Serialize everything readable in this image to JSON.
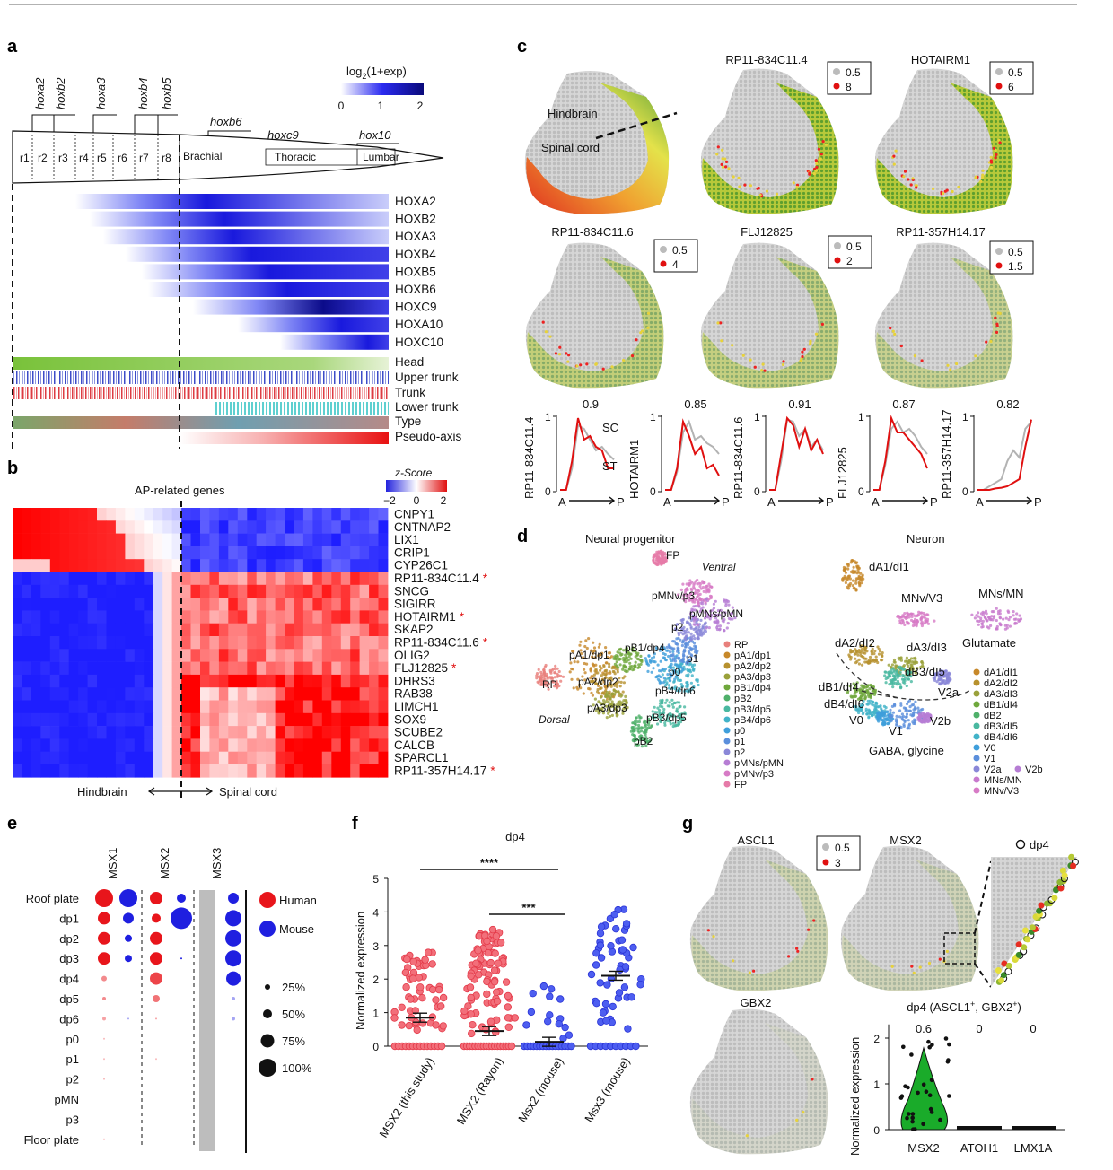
{
  "panels": {
    "a": "a",
    "b": "b",
    "c": "c",
    "d": "d",
    "e": "e",
    "f": "f",
    "g": "g"
  },
  "panel_a": {
    "hox_labels": [
      "hoxa2",
      "hoxb2",
      "hoxa3",
      "hoxb4",
      "hoxb5",
      "hoxb6",
      "hoxc9",
      "hox10"
    ],
    "rhombomeres": [
      "r1",
      "r2",
      "r3",
      "r4",
      "r5",
      "r6",
      "r7",
      "r8"
    ],
    "regions": [
      "Brachial",
      "Thoracic",
      "Lumbar"
    ],
    "legend_title": "log",
    "legend_sub": "2",
    "legend_rest": "(1+exp)",
    "legend_ticks": [
      "0",
      "1",
      "2"
    ],
    "genes": [
      "HOXA2",
      "HOXB2",
      "HOXA3",
      "HOXB4",
      "HOXB5",
      "HOXB6",
      "HOXC9",
      "HOXA10",
      "HOXC10"
    ],
    "tracks": [
      "Head",
      "Upper trunk",
      "Trunk",
      "Lower trunk",
      "Type",
      "Pseudo-axis"
    ]
  },
  "panel_b": {
    "title": "AP-related genes",
    "legend_title": "z-Score",
    "legend_ticks": [
      "−2",
      "0",
      "2"
    ],
    "genes": [
      "CNPY1",
      "CNTNAP2",
      "LIX1",
      "CRIP1",
      "CYP26C1",
      "RP11-834C11.4",
      "SNCG",
      "SIGIRR",
      "HOTAIRM1",
      "SKAP2",
      "RP11-834C11.6",
      "OLIG2",
      "FLJ12825",
      "DHRS3",
      "RAB38",
      "LIMCH1",
      "SOX9",
      "SCUBE2",
      "CALCB",
      "SPARCL1",
      "RP11-357H14.17"
    ],
    "starred": [
      5,
      8,
      10,
      12,
      20
    ],
    "star": "*",
    "axis_left": "Hindbrain",
    "axis_right": "Spinal cord"
  },
  "panel_c": {
    "region_hindbrain": "Hindbrain",
    "region_spinal": "Spinal cord",
    "maps": [
      {
        "gene": "RP11-834C11.4",
        "lo": "0.5",
        "hi": "8"
      },
      {
        "gene": "HOTAIRM1",
        "lo": "0.5",
        "hi": "6"
      },
      {
        "gene": "RP11-834C11.6",
        "lo": "0.5",
        "hi": "4"
      },
      {
        "gene": "FLJ12825",
        "lo": "0.5",
        "hi": "2"
      },
      {
        "gene": "RP11-357H14.17",
        "lo": "0.5",
        "hi": "1.5"
      }
    ],
    "curves": [
      {
        "gene": "RP11-834C11.4",
        "r": "0.9"
      },
      {
        "gene": "HOTAIRM1",
        "r": "0.85"
      },
      {
        "gene": "RP11-834C11.6",
        "r": "0.91"
      },
      {
        "gene": "FLJ12825",
        "r": "0.87"
      },
      {
        "gene": "RP11-357H14.17",
        "r": "0.82"
      }
    ],
    "y_top": "1",
    "y_bottom": "0",
    "x_a": "A",
    "x_p": "P",
    "sc_label": "SC",
    "st_label": "ST"
  },
  "panel_d": {
    "title_left": "Neural progenitor",
    "title_right": "Neuron",
    "left_cluster_labels": [
      "FP",
      "Ventral",
      "pMNv/p3",
      "pMNs/pMN",
      "p2",
      "pB1/dp4",
      "p1",
      "pA1/dp1",
      "p0",
      "RP",
      "pA2/dp2",
      "pB4/dp6",
      "pA3/dp3",
      "pB3/dp5",
      "Dorsal",
      "pB2"
    ],
    "left_legend": [
      "RP",
      "pA1/dp1",
      "pA2/dp2",
      "pA3/dp3",
      "pB1/dp4",
      "pB2",
      "pB3/dp5",
      "pB4/dp6",
      "p0",
      "p1",
      "p2",
      "pMNs/pMN",
      "pMNv/p3",
      "FP"
    ],
    "left_colors": [
      "#e8807c",
      "#c7882a",
      "#b7912e",
      "#9aa13a",
      "#6fa83c",
      "#4fb06a",
      "#49b8a0",
      "#41b3c8",
      "#3f9fdb",
      "#5b8fdc",
      "#8a87d8",
      "#b67dd4",
      "#d77bc6",
      "#e67aa8"
    ],
    "right_cluster_labels": [
      "dA1/dI1",
      "MNv/V3",
      "MNs/MN",
      "dA2/dI2",
      "dA3/dI3",
      "Glutamate",
      "dB3/dI5",
      "dB1/dI4",
      "V2a",
      "dB4/dI6",
      "V0",
      "V2b",
      "V1",
      "GABA, glycine"
    ],
    "right_legend": [
      "dA1/dI1",
      "dA2/dI2",
      "dA3/dI3",
      "dB1/dI4",
      "dB2",
      "dB3/dI5",
      "dB4/dI6",
      "V0",
      "V1",
      "V2a",
      "V2b",
      "MNs/MN",
      "MNv/V3"
    ],
    "right_colors": [
      "#c7882a",
      "#b7912e",
      "#9aa13a",
      "#6fa83c",
      "#4fb06a",
      "#49b8a0",
      "#41b3c8",
      "#3f9fdb",
      "#5b8fdc",
      "#8a87d8",
      "#b67dd4",
      "#c879cd",
      "#d77bc6"
    ]
  },
  "panel_e": {
    "columns": [
      "MSX1",
      "MSX2",
      "MSX3"
    ],
    "rows": [
      "Roof plate",
      "dp1",
      "dp2",
      "dp3",
      "dp4",
      "dp5",
      "dp6",
      "p0",
      "p1",
      "p2",
      "pMN",
      "p3",
      "Floor plate"
    ],
    "legend_species": [
      "Human",
      "Mouse"
    ],
    "legend_pct": [
      "25%",
      "50%",
      "75%",
      "100%"
    ],
    "human_color": "#e8151b",
    "mouse_color": "#1f1fe0"
  },
  "panel_f": {
    "title": "dp4",
    "ylabel": "Normalized expression",
    "yticks": [
      "0",
      "1",
      "2",
      "3",
      "4",
      "5"
    ],
    "groups": [
      "MSX2 (this study)",
      "MSX2 (Rayon)",
      "Msx2 (mouse)",
      "Msx3 (mouse)"
    ],
    "sig1": "****",
    "sig2": "***"
  },
  "panel_g": {
    "genes": [
      "ASCL1",
      "MSX2",
      "GBX2"
    ],
    "legend_lo": "0.5",
    "legend_hi": "3",
    "inset_label": "dp4",
    "violin_title": "dp4 (ASCL1",
    "violin_title_mid": ", GBX2",
    "violin_title_end": ")",
    "sup": "+",
    "ylabel": "Normalized expression",
    "yticks": [
      "0",
      "1",
      "2"
    ],
    "violin_groups": [
      "MSX2",
      "ATOH1",
      "LMX1A"
    ],
    "violin_values": [
      "0.6",
      "0",
      "0"
    ]
  }
}
